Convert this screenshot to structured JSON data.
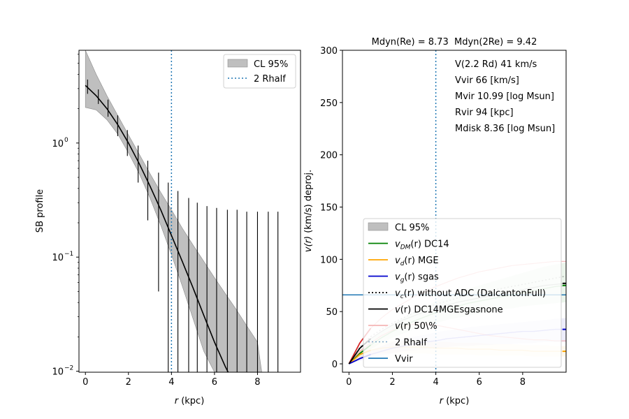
{
  "colors": {
    "band": "#bfbfbf",
    "band_edge": "#8c8c8c",
    "dotted_line": "#1f77b4",
    "dm": "#008000",
    "disk": "#ffa500",
    "gas": "#0000cd",
    "total": "#000000",
    "median": "#f4b4b4",
    "vvir": "#1f77b4"
  },
  "chart_data": [
    {
      "type": "line",
      "log_y": true,
      "xlabel": "r (kpc)",
      "xlabel_main": "r",
      "xlabel_unit": "(kpc)",
      "ylabel": "SB profile",
      "xlim": [
        -0.3,
        10
      ],
      "ylim": [
        0.0098,
        6.5
      ],
      "xticks": [
        0,
        2,
        4,
        6,
        8
      ],
      "yticks": [
        {
          "value": 1,
          "mant": "10",
          "exp": "0"
        },
        {
          "value": 0.1,
          "mant": "10",
          "exp": "−1"
        },
        {
          "value": 0.01,
          "mant": "10",
          "exp": "−2"
        }
      ],
      "model": {
        "x": [
          0,
          0.5,
          1,
          1.5,
          2,
          2.5,
          3,
          3.5,
          4,
          4.5,
          5,
          5.5,
          6,
          6.5,
          6.8
        ],
        "y": [
          3.2,
          2.6,
          2.0,
          1.45,
          1.0,
          0.66,
          0.42,
          0.26,
          0.155,
          0.092,
          0.054,
          0.031,
          0.018,
          0.011,
          0.0085
        ]
      },
      "band": {
        "x": [
          0,
          0.5,
          1,
          1.5,
          2,
          2.5,
          3,
          3.5,
          4,
          4.5,
          5,
          5.5,
          6,
          6.5,
          7,
          7.5,
          8,
          8.2
        ],
        "upper": [
          6.5,
          4.0,
          2.6,
          1.75,
          1.18,
          0.8,
          0.54,
          0.37,
          0.26,
          0.18,
          0.128,
          0.092,
          0.066,
          0.048,
          0.035,
          0.025,
          0.018,
          0.0098
        ],
        "lower": [
          2.05,
          1.95,
          1.6,
          1.2,
          0.82,
          0.54,
          0.33,
          0.19,
          0.105,
          0.056,
          0.029,
          0.015,
          0.0098,
          0.0098,
          0.0098,
          0.0098,
          0.0098,
          0.0098
        ]
      },
      "error_bars": [
        {
          "x": 0.1,
          "y": 3.15,
          "lo": 2.7,
          "hi": 3.6
        },
        {
          "x": 0.6,
          "y": 2.55,
          "lo": 2.2,
          "hi": 2.95
        },
        {
          "x": 1.05,
          "y": 2.0,
          "lo": 1.7,
          "hi": 2.4
        },
        {
          "x": 1.5,
          "y": 1.42,
          "lo": 1.15,
          "hi": 1.75
        },
        {
          "x": 1.95,
          "y": 1.0,
          "lo": 0.77,
          "hi": 1.3
        },
        {
          "x": 2.45,
          "y": 0.66,
          "lo": 0.45,
          "hi": 0.95
        },
        {
          "x": 2.9,
          "y": 0.42,
          "lo": 0.21,
          "hi": 0.7
        },
        {
          "x": 3.4,
          "y": 0.26,
          "lo": 0.05,
          "hi": 0.55
        },
        {
          "x": 3.85,
          "y": 0.16,
          "lo": 0.0098,
          "hi": 0.45
        },
        {
          "x": 4.3,
          "y": 0.1,
          "lo": 0.0098,
          "hi": 0.38
        },
        {
          "x": 4.8,
          "y": 0.07,
          "lo": 0.0098,
          "hi": 0.33
        },
        {
          "x": 5.2,
          "y": 0.05,
          "lo": 0.0098,
          "hi": 0.3
        },
        {
          "x": 5.65,
          "y": 0.035,
          "lo": 0.0098,
          "hi": 0.28
        },
        {
          "x": 6.1,
          "y": 0.03,
          "lo": 0.0098,
          "hi": 0.27
        },
        {
          "x": 6.6,
          "y": 0.03,
          "lo": 0.0098,
          "hi": 0.26
        },
        {
          "x": 7.05,
          "y": 0.03,
          "lo": 0.0098,
          "hi": 0.26
        },
        {
          "x": 7.5,
          "y": 0.03,
          "lo": 0.0098,
          "hi": 0.25
        },
        {
          "x": 8.0,
          "y": 0.03,
          "lo": 0.0098,
          "hi": 0.25
        },
        {
          "x": 8.5,
          "y": 0.03,
          "lo": 0.0098,
          "hi": 0.25
        },
        {
          "x": 8.95,
          "y": 0.03,
          "lo": 0.0098,
          "hi": 0.25
        }
      ],
      "vline_x": 4,
      "legend": {
        "placement": "upper right",
        "entries": [
          "CL 95%",
          "2 Rhalf"
        ]
      }
    },
    {
      "type": "line",
      "title": "Mdyn(Re) = 8.73  Mdyn(2Re) = 9.42",
      "xlabel": "r (kpc)",
      "xlabel_main": "r",
      "xlabel_unit": "(kpc)",
      "ylabel": "v(r) (km/s) deproj.",
      "ylabel_main": "v(r)",
      "ylabel_rest": " (km/s) deproj.",
      "xlim": [
        -0.3,
        10
      ],
      "ylim": [
        -8,
        300
      ],
      "xticks": [
        0,
        2,
        4,
        6,
        8
      ],
      "yticks": [
        0,
        50,
        100,
        150,
        200,
        250,
        300
      ],
      "vline_x": 4,
      "hline_vvir": 66,
      "annotations": [
        "V(2.2 Rd) 41 km/s",
        "Vvir 66 [km/s]",
        "Mvir 10.99 [log Msun]",
        "Rvir 94 [kpc]",
        "Mdisk 8.36 [log Msun]"
      ],
      "x": [
        0,
        0.5,
        1,
        1.5,
        2,
        2.5,
        3,
        3.5,
        4,
        4.5,
        5,
        5.5,
        6,
        6.5,
        7,
        7.5,
        8,
        8.5,
        9,
        9.5,
        10
      ],
      "series": [
        {
          "key": "dm",
          "y": [
            0,
            10,
            18,
            25,
            31,
            36,
            41,
            45,
            49,
            52,
            55,
            58,
            60,
            62,
            64,
            66,
            68,
            70,
            72,
            74,
            75
          ],
          "lo": [
            0,
            7,
            14,
            20,
            25,
            29,
            33,
            36,
            39,
            42,
            44,
            46,
            48,
            50,
            52,
            53,
            55,
            56,
            57,
            58,
            59
          ],
          "hi": [
            0,
            13,
            23,
            31,
            38,
            44,
            50,
            55,
            60,
            64,
            68,
            72,
            75,
            78,
            81,
            84,
            87,
            90,
            93,
            95,
            97
          ]
        },
        {
          "key": "disk",
          "y": [
            0,
            9,
            13,
            15,
            16,
            16,
            16,
            16,
            15,
            15,
            15,
            14,
            14,
            14,
            13,
            13,
            13,
            12,
            12,
            12,
            12
          ],
          "lo": [
            0,
            5,
            8,
            10,
            10,
            10,
            10,
            10,
            9,
            9,
            9,
            9,
            8,
            8,
            8,
            8,
            8,
            7,
            7,
            7,
            7
          ],
          "hi": [
            0,
            12,
            18,
            21,
            22,
            22,
            22,
            22,
            21,
            21,
            20,
            20,
            20,
            19,
            19,
            19,
            18,
            18,
            18,
            17,
            17
          ]
        },
        {
          "key": "gas",
          "y": [
            0,
            5,
            9,
            12,
            15,
            17,
            19,
            21,
            22,
            24,
            25,
            26,
            27,
            28,
            29,
            30,
            31,
            31,
            32,
            33,
            33
          ],
          "lo": [
            0,
            3,
            6,
            8,
            10,
            12,
            13,
            14,
            15,
            16,
            17,
            17,
            18,
            18,
            19,
            19,
            20,
            20,
            21,
            21,
            21
          ],
          "hi": [
            0,
            7,
            13,
            17,
            21,
            24,
            26,
            28,
            30,
            32,
            33,
            35,
            36,
            37,
            38,
            39,
            40,
            41,
            42,
            43,
            44
          ]
        },
        {
          "key": "vc",
          "y": [
            0,
            16,
            26,
            33,
            39,
            44,
            49,
            53,
            57,
            60,
            63,
            66,
            68,
            70,
            72,
            74,
            76,
            78,
            80,
            82,
            84
          ]
        },
        {
          "key": "total",
          "y": [
            0,
            15,
            24,
            31,
            37,
            42,
            46,
            50,
            53,
            56,
            59,
            61,
            63,
            65,
            67,
            69,
            71,
            73,
            75,
            76,
            77
          ]
        },
        {
          "key": "median",
          "y": [
            0,
            20,
            34,
            44,
            52,
            58,
            64,
            69,
            74,
            78,
            82,
            85,
            88,
            90,
            92,
            94,
            95,
            96,
            97,
            98,
            98
          ],
          "y2": [
            0,
            12,
            20,
            27,
            32,
            36,
            38,
            38,
            37,
            35,
            33,
            31,
            29,
            27,
            26,
            25,
            24,
            23,
            23,
            22,
            22
          ]
        }
      ],
      "legend": {
        "placement": "lower right",
        "entries": [
          {
            "key": "band",
            "pre": "CL 95%",
            "sub": "",
            "post": ""
          },
          {
            "key": "dm",
            "pre": "v",
            "sub": "DM",
            "post": "(r) DC14"
          },
          {
            "key": "disk",
            "pre": "v",
            "sub": "d",
            "post": "(r) MGE"
          },
          {
            "key": "gas",
            "pre": "v",
            "sub": "g",
            "post": "(r) sgas"
          },
          {
            "key": "vc",
            "pre": "v",
            "sub": "c",
            "post": "(r) without ADC (DalcantonFull)"
          },
          {
            "key": "total",
            "pre": "v",
            "sub": "",
            "post": "(r) DC14MGEsgasnone"
          },
          {
            "key": "median",
            "pre": "v",
            "sub": "",
            "post": "(r) 50\\%"
          },
          {
            "key": "rhalf",
            "pre": "2 Rhalf",
            "sub": "",
            "post": ""
          },
          {
            "key": "vvir",
            "pre": "Vvir",
            "sub": "",
            "post": ""
          }
        ]
      }
    }
  ]
}
